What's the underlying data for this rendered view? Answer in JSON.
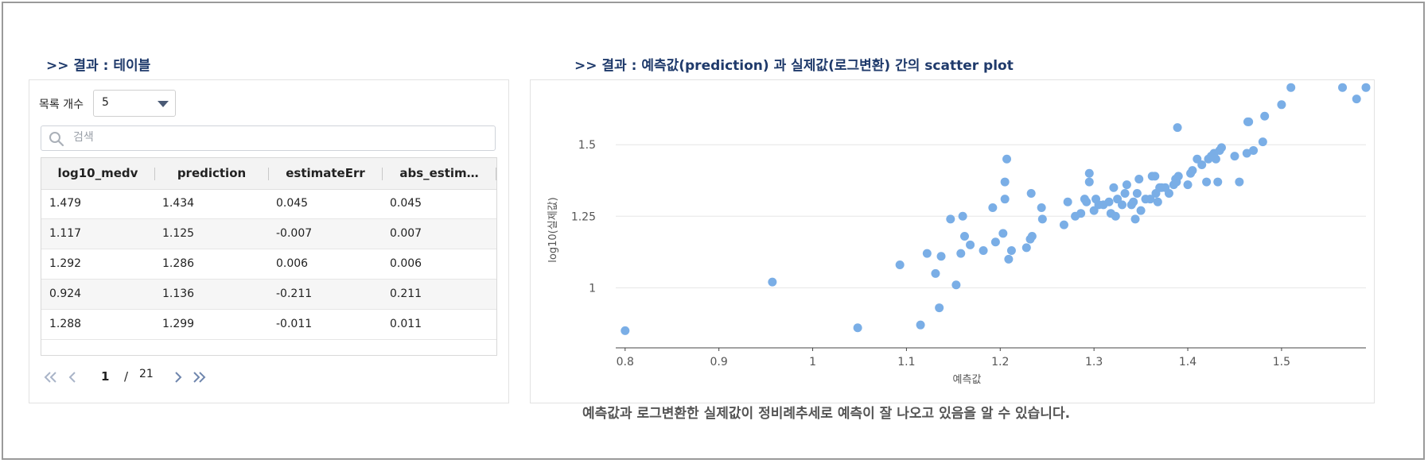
{
  "left_section": {
    "title": ">> 결과 : 테이블"
  },
  "right_section": {
    "title": ">> 결과 : 예측값(prediction) 과 실제값(로그변환) 간의 scatter plot"
  },
  "table": {
    "page_size_label": "목록 개수",
    "page_size_value": "5",
    "search_placeholder": "검색",
    "columns": [
      "log10_medv",
      "prediction",
      "estimateErr",
      "abs_estim…"
    ],
    "rows": [
      [
        "1.479",
        "1.434",
        "0.045",
        "0.045"
      ],
      [
        "1.117",
        "1.125",
        "-0.007",
        "0.007"
      ],
      [
        "1.292",
        "1.286",
        "0.006",
        "0.006"
      ],
      [
        "0.924",
        "1.136",
        "-0.211",
        "0.211"
      ],
      [
        "1.288",
        "1.299",
        "-0.011",
        "0.011"
      ]
    ],
    "pagination": {
      "current_page": "1",
      "separator": "/",
      "total_pages": "21"
    }
  },
  "chart_data": {
    "type": "scatter",
    "xlabel": "예측값",
    "ylabel": "log10(실제값)",
    "xlim": [
      0.79,
      1.59
    ],
    "ylim": [
      0.79,
      1.67
    ],
    "x_ticks": [
      "0.8",
      "0.9",
      "1",
      "1.1",
      "1.2",
      "1.3",
      "1.4",
      "1.5"
    ],
    "y_ticks": [
      "1",
      "1.25",
      "1.5"
    ],
    "grid": true,
    "point_color": "#7aaee6",
    "points": [
      [
        0.8,
        0.85
      ],
      [
        0.957,
        1.02
      ],
      [
        1.048,
        0.86
      ],
      [
        1.093,
        1.08
      ],
      [
        1.115,
        0.87
      ],
      [
        1.122,
        1.12
      ],
      [
        1.131,
        1.05
      ],
      [
        1.135,
        0.93
      ],
      [
        1.137,
        1.11
      ],
      [
        1.147,
        1.24
      ],
      [
        1.153,
        1.01
      ],
      [
        1.158,
        1.12
      ],
      [
        1.16,
        1.25
      ],
      [
        1.162,
        1.18
      ],
      [
        1.168,
        1.15
      ],
      [
        1.182,
        1.13
      ],
      [
        1.192,
        1.28
      ],
      [
        1.195,
        1.16
      ],
      [
        1.203,
        1.19
      ],
      [
        1.205,
        1.31
      ],
      [
        1.205,
        1.37
      ],
      [
        1.207,
        1.45
      ],
      [
        1.209,
        1.1
      ],
      [
        1.212,
        1.13
      ],
      [
        1.228,
        1.14
      ],
      [
        1.232,
        1.17
      ],
      [
        1.233,
        1.33
      ],
      [
        1.234,
        1.18
      ],
      [
        1.244,
        1.28
      ],
      [
        1.245,
        1.24
      ],
      [
        1.268,
        1.22
      ],
      [
        1.272,
        1.3
      ],
      [
        1.28,
        1.25
      ],
      [
        1.286,
        1.26
      ],
      [
        1.29,
        1.31
      ],
      [
        1.292,
        1.3
      ],
      [
        1.295,
        1.37
      ],
      [
        1.295,
        1.4
      ],
      [
        1.3,
        1.27
      ],
      [
        1.302,
        1.31
      ],
      [
        1.305,
        1.29
      ],
      [
        1.31,
        1.29
      ],
      [
        1.316,
        1.3
      ],
      [
        1.318,
        1.26
      ],
      [
        1.321,
        1.35
      ],
      [
        1.323,
        1.25
      ],
      [
        1.325,
        1.31
      ],
      [
        1.33,
        1.29
      ],
      [
        1.333,
        1.33
      ],
      [
        1.335,
        1.36
      ],
      [
        1.34,
        1.29
      ],
      [
        1.342,
        1.3
      ],
      [
        1.344,
        1.24
      ],
      [
        1.346,
        1.33
      ],
      [
        1.348,
        1.38
      ],
      [
        1.35,
        1.27
      ],
      [
        1.355,
        1.31
      ],
      [
        1.36,
        1.31
      ],
      [
        1.362,
        1.39
      ],
      [
        1.365,
        1.39
      ],
      [
        1.366,
        1.33
      ],
      [
        1.368,
        1.3
      ],
      [
        1.37,
        1.35
      ],
      [
        1.372,
        1.35
      ],
      [
        1.376,
        1.35
      ],
      [
        1.38,
        1.33
      ],
      [
        1.385,
        1.36
      ],
      [
        1.387,
        1.38
      ],
      [
        1.388,
        1.37
      ],
      [
        1.389,
        1.56
      ],
      [
        1.39,
        1.39
      ],
      [
        1.4,
        1.36
      ],
      [
        1.403,
        1.4
      ],
      [
        1.405,
        1.41
      ],
      [
        1.41,
        1.45
      ],
      [
        1.415,
        1.43
      ],
      [
        1.42,
        1.37
      ],
      [
        1.422,
        1.45
      ],
      [
        1.425,
        1.46
      ],
      [
        1.428,
        1.47
      ],
      [
        1.43,
        1.45
      ],
      [
        1.432,
        1.37
      ],
      [
        1.434,
        1.48
      ],
      [
        1.436,
        1.49
      ],
      [
        1.45,
        1.46
      ],
      [
        1.455,
        1.37
      ],
      [
        1.463,
        1.47
      ],
      [
        1.464,
        1.58
      ],
      [
        1.465,
        1.58
      ],
      [
        1.47,
        1.48
      ],
      [
        1.48,
        1.51
      ],
      [
        1.482,
        1.6
      ],
      [
        1.5,
        1.64
      ],
      [
        1.51,
        1.7
      ],
      [
        1.565,
        1.7
      ],
      [
        1.58,
        1.66
      ],
      [
        1.59,
        1.7
      ]
    ]
  },
  "conclusion": "예측값과 로그변환한 실제값이 정비례추세로 예측이 잘 나오고 있음을 알 수 있습니다."
}
